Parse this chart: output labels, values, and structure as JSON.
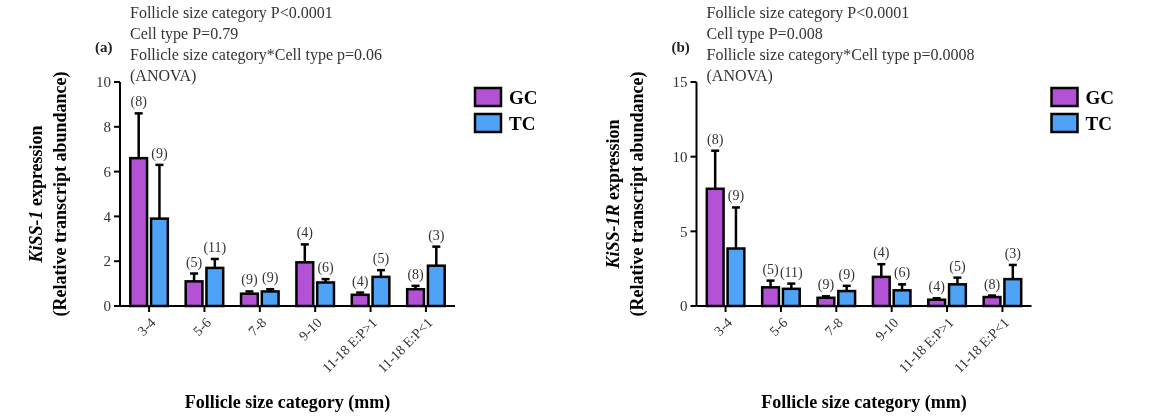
{
  "chart_data": [
    {
      "type": "bar",
      "title": "(a)",
      "annotations": [
        "Follicle size category P<0.0001",
        "Cell type P=0.79",
        "Follicle size category*Cell type p=0.06",
        "(ANOVA)",
        "(8)",
        "(9)",
        "(5)",
        "(11)",
        "(9)",
        "(9)",
        "(4)",
        "(6)",
        "(4)",
        "(5)",
        "(8)",
        "(3)"
      ],
      "xlabel": "Follicle size category (mm)",
      "ylabel": "KiSS-1 expression (Relative transcript abundance)",
      "categories": [
        "3-4",
        "5-6",
        "7-8",
        "9-10",
        "11-18 E:P>1",
        "11-18 E:P<1"
      ],
      "series": [
        {
          "name": "GC",
          "color": "#b452d6",
          "values": [
            6.6,
            1.1,
            0.55,
            1.95,
            0.5,
            0.75
          ],
          "errors": [
            [
              6.6,
              8.6
            ],
            [
              1.1,
              1.45
            ],
            [
              0.55,
              0.65
            ],
            [
              1.95,
              2.75
            ],
            [
              0.5,
              0.6
            ],
            [
              0.75,
              0.9
            ]
          ]
        },
        {
          "name": "TC",
          "color": "#4fa3f7",
          "values": [
            3.9,
            1.7,
            0.65,
            1.05,
            1.3,
            1.8
          ],
          "errors": [
            [
              3.9,
              6.3
            ],
            [
              1.7,
              2.1
            ],
            [
              0.65,
              0.75
            ],
            [
              1.05,
              1.2
            ],
            [
              1.3,
              1.6
            ],
            [
              1.8,
              2.65
            ]
          ]
        }
      ],
      "ylim": [
        0,
        10
      ],
      "yticks": [
        0,
        2,
        4,
        6,
        8,
        10
      ],
      "legend": "right",
      "grid": false
    },
    {
      "type": "bar",
      "title": "(b)",
      "annotations": [
        "Follicle size category P<0.0001",
        "Cell type P=0.008",
        "Follicle size category*Cell type p=0.0008",
        "(ANOVA)",
        "(8)",
        "(9)",
        "(5)",
        "(11)",
        "(9)",
        "(9)",
        "(4)",
        "(6)",
        "(4)",
        "(5)",
        "(8)",
        "(3)"
      ],
      "xlabel": "Follicle size category (mm)",
      "ylabel": "KiSS-1R expression (Relative transcript abundance)",
      "categories": [
        "3-4",
        "5-6",
        "7-8",
        "9-10",
        "11-18 E:P>1",
        "11-18 E:P<1"
      ],
      "series": [
        {
          "name": "GC",
          "color": "#b452d6",
          "values": [
            7.85,
            1.25,
            0.55,
            1.95,
            0.42,
            0.6
          ],
          "errors": [
            [
              7.85,
              10.4
            ],
            [
              1.25,
              1.7
            ],
            [
              0.55,
              0.65
            ],
            [
              1.95,
              2.8
            ],
            [
              0.42,
              0.52
            ],
            [
              0.6,
              0.7
            ]
          ]
        },
        {
          "name": "TC",
          "color": "#4fa3f7",
          "values": [
            3.85,
            1.15,
            1.0,
            1.05,
            1.45,
            1.8
          ],
          "errors": [
            [
              3.85,
              6.6
            ],
            [
              1.15,
              1.5
            ],
            [
              1.0,
              1.35
            ],
            [
              1.05,
              1.45
            ],
            [
              1.45,
              1.9
            ],
            [
              1.8,
              2.75
            ]
          ]
        }
      ],
      "ylim": [
        0,
        15
      ],
      "yticks": [
        0,
        5,
        10,
        15
      ],
      "legend": "right",
      "grid": false
    }
  ]
}
